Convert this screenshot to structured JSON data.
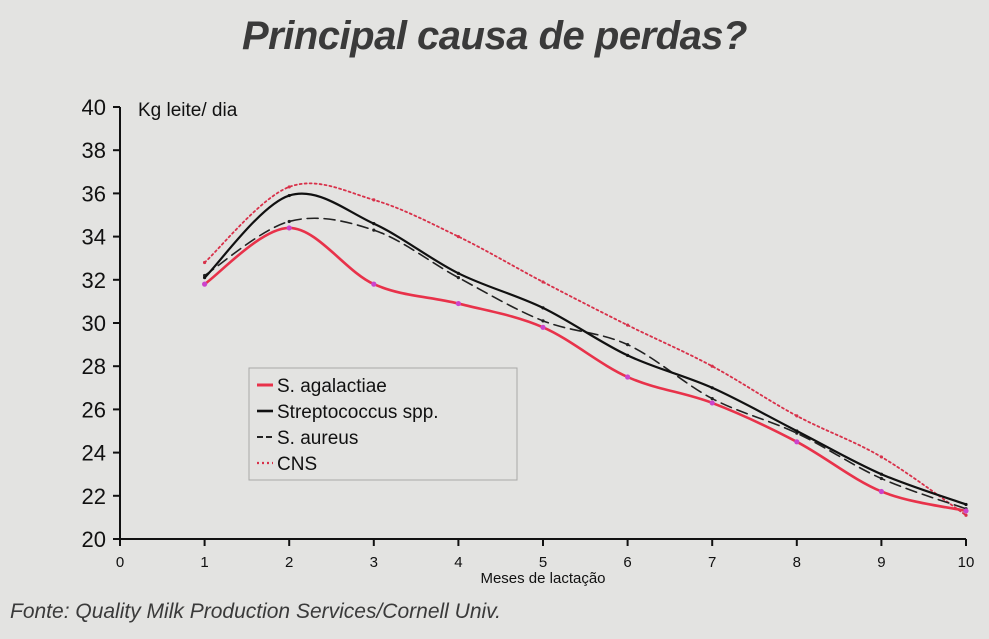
{
  "title": "Principal causa de perdas?",
  "source": "Fonte: Quality Milk Production Services/Cornell Univ.",
  "colors": {
    "s_agalactiae": "#e8324a",
    "streptococcus": "#111111",
    "s_aureus": "#222222",
    "cns": "#d8314a",
    "marker": "#cc44cc"
  },
  "chart_data": {
    "type": "line",
    "xlabel": "Meses de lactação",
    "ylabel": "Kg leite/ dia",
    "xlim": [
      0,
      10
    ],
    "ylim": [
      20,
      40
    ],
    "x_ticks": [
      "0",
      "1",
      "2",
      "3",
      "4",
      "5",
      "6",
      "7",
      "8",
      "9",
      "10"
    ],
    "y_ticks": [
      "20",
      "22",
      "24",
      "26",
      "28",
      "30",
      "32",
      "34",
      "36",
      "38",
      "40"
    ],
    "x": [
      1,
      2,
      3,
      4,
      5,
      6,
      7,
      8,
      9,
      10
    ],
    "grid": false,
    "legend_position": "lower-left inside",
    "series": [
      {
        "name": "S. agalactiae",
        "style": "solid-red-markers",
        "values": [
          31.8,
          34.4,
          31.8,
          30.9,
          29.8,
          27.5,
          26.3,
          24.5,
          22.2,
          21.3
        ]
      },
      {
        "name": "Streptococcus spp.",
        "style": "solid-black",
        "values": [
          32.1,
          35.9,
          34.6,
          32.3,
          30.7,
          28.5,
          27.0,
          25.0,
          23.0,
          21.6
        ]
      },
      {
        "name": "S. aureus",
        "style": "dashed-black",
        "values": [
          32.2,
          34.7,
          34.3,
          32.1,
          30.1,
          29.0,
          26.5,
          24.9,
          22.8,
          21.4
        ]
      },
      {
        "name": "CNS",
        "style": "dotted-red",
        "values": [
          32.8,
          36.3,
          35.7,
          34.0,
          31.9,
          29.9,
          28.0,
          25.7,
          23.8,
          21.1
        ]
      }
    ]
  }
}
